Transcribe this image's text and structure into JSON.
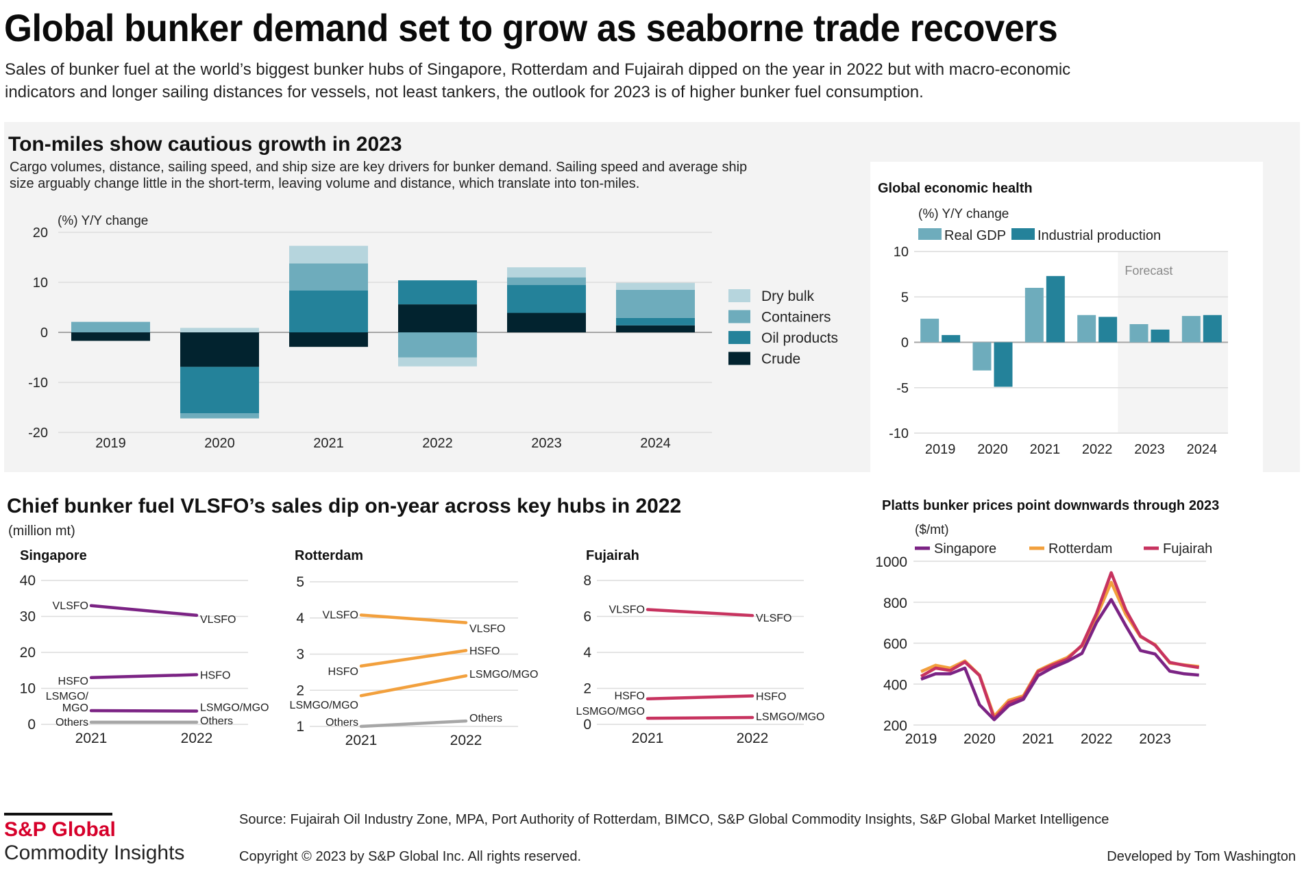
{
  "header": {
    "title": "Global bunker demand set to grow as seaborne trade recovers",
    "subtitle_line1": "Sales of bunker fuel at the world’s biggest bunker hubs of Singapore, Rotterdam and Fujairah dipped on the year in 2022 but with macro-economic",
    "subtitle_line2": "indicators and longer sailing distances for vessels, not least tankers, the outlook for 2023 is of higher bunker fuel consumption."
  },
  "colors": {
    "dry_bulk": "#b6d5dd",
    "containers": "#6eacbc",
    "oil_products": "#24829a",
    "crude": "#02232f",
    "real_gdp": "#6eacbc",
    "industrial_production": "#24829a",
    "singapore": "#7b2384",
    "rotterdam": "#f2a03d",
    "fujairah": "#c7335f",
    "others": "#a6a6a6",
    "brand_red": "#d6002a"
  },
  "ton_miles": {
    "title": "Ton-miles show cautious growth in 2023",
    "desc_line1": "Cargo volumes, distance, sailing speed, and ship size are key drivers for bunker demand. Sailing speed and average ship",
    "desc_line2": "size arguably change little in the short-term, leaving volume and distance, which translate into ton-miles."
  },
  "gdp": {
    "title": "Global economic health",
    "forecast_label": "Forecast"
  },
  "sales": {
    "title": "Chief bunker fuel VLSFO’s sales dip on-year across key hubs in 2022",
    "unit": "(million mt)"
  },
  "footer": {
    "brand": "S&P Global",
    "brand_sub": "Commodity Insights",
    "source": "Source: Fujairah Oil Industry Zone, MPA, Port Authority of Rotterdam, BIMCO, S&P Global Commodity Insights, S&P Global Market Intelligence",
    "copyright": "Copyright © 2023 by S&P Global Inc. All rights reserved.",
    "credit": "Developed by Tom Washington"
  },
  "chart_data": [
    {
      "id": "ton_miles",
      "type": "bar",
      "stacked": true,
      "title": "Ton-miles show cautious growth in 2023",
      "ylabel": "(%) Y/Y change",
      "xlabel": "",
      "categories": [
        "2019",
        "2020",
        "2021",
        "2022",
        "2023",
        "2024"
      ],
      "ylim": [
        -20,
        20
      ],
      "yticks": [
        20,
        10,
        0,
        -10,
        -20
      ],
      "grid": true,
      "legend_position": "right",
      "series": [
        {
          "name": "Crude",
          "color_key": "crude",
          "values": [
            -1.7,
            -6.9,
            -2.9,
            5.6,
            3.9,
            1.4
          ]
        },
        {
          "name": "Oil products",
          "color_key": "oil_products",
          "values": [
            0,
            -9.3,
            8.4,
            4.8,
            5.6,
            1.5
          ]
        },
        {
          "name": "Containers",
          "color_key": "containers",
          "values": [
            2.1,
            -1.0,
            5.4,
            -5.0,
            1.5,
            5.6
          ]
        },
        {
          "name": "Dry bulk",
          "color_key": "dry_bulk",
          "values": [
            0,
            0.9,
            3.5,
            -1.8,
            2.0,
            1.4
          ]
        }
      ],
      "legend_order": [
        "Dry bulk",
        "Containers",
        "Oil products",
        "Crude"
      ]
    },
    {
      "id": "gdp",
      "type": "bar",
      "stacked": false,
      "title": "Global economic health",
      "ylabel": "(%) Y/Y change",
      "categories": [
        "2019",
        "2020",
        "2021",
        "2022",
        "2023",
        "2024"
      ],
      "ylim": [
        -10,
        10
      ],
      "yticks": [
        10,
        5,
        0,
        -5,
        -10
      ],
      "grid": true,
      "legend_position": "top-left",
      "forecast_from": "2023",
      "annotations": [
        "Forecast"
      ],
      "series": [
        {
          "name": "Real GDP",
          "color_key": "real_gdp",
          "values": [
            2.6,
            -3.1,
            6.0,
            3.0,
            2.0,
            2.9
          ]
        },
        {
          "name": "Industrial production",
          "color_key": "industrial_production",
          "values": [
            0.8,
            -4.9,
            7.3,
            2.8,
            1.4,
            3.0
          ]
        }
      ]
    },
    {
      "id": "singapore_sales",
      "type": "line",
      "title": "Singapore",
      "ylabel": "(million mt)",
      "x": [
        "2021",
        "2022"
      ],
      "ylim": [
        0,
        40
      ],
      "yticks": [
        40,
        30,
        20,
        10,
        0
      ],
      "color_key": "singapore",
      "series": [
        {
          "name": "VLSFO",
          "values": [
            33.0,
            30.3
          ],
          "label_left": "VLSFO",
          "label_right": "VLSFO"
        },
        {
          "name": "HSFO",
          "values": [
            13.0,
            13.8
          ],
          "label_left": "HSFO",
          "label_right": "HSFO"
        },
        {
          "name": "LSMGO/MGO",
          "values": [
            3.8,
            3.7
          ],
          "label_left": "LSMGO/\nMGO",
          "label_right": "LSMGO/MGO"
        },
        {
          "name": "Others",
          "values": [
            0.6,
            0.6
          ],
          "label_left": "Others",
          "label_right": "Others",
          "gray": true
        }
      ]
    },
    {
      "id": "rotterdam_sales",
      "type": "line",
      "title": "Rotterdam",
      "x": [
        "2021",
        "2022"
      ],
      "ylim": [
        1,
        5
      ],
      "yticks": [
        5,
        4,
        3,
        2,
        1
      ],
      "color_key": "rotterdam",
      "series": [
        {
          "name": "VLSFO",
          "values": [
            4.08,
            3.87
          ],
          "label_left": "VLSFO",
          "label_right": "VLSFO"
        },
        {
          "name": "HSFO",
          "values": [
            2.67,
            3.1
          ],
          "label_left": "HSFO",
          "label_right": "HSFO"
        },
        {
          "name": "LSMGO/MGO",
          "values": [
            1.85,
            2.4
          ],
          "label_left": "LSMGO/MGO",
          "label_right": "LSMGO/MGO"
        },
        {
          "name": "Others",
          "values": [
            1.0,
            1.15
          ],
          "label_left": "Others",
          "label_right": "Others",
          "gray": true
        }
      ]
    },
    {
      "id": "fujairah_sales",
      "type": "line",
      "title": "Fujairah",
      "x": [
        "2021",
        "2022"
      ],
      "ylim": [
        0,
        8
      ],
      "yticks": [
        8,
        6,
        4,
        2,
        0
      ],
      "color_key": "fujairah",
      "series": [
        {
          "name": "VLSFO",
          "values": [
            6.38,
            6.05
          ],
          "label_left": "VLSFO",
          "label_right": "VLSFO"
        },
        {
          "name": "HSFO",
          "values": [
            1.42,
            1.58
          ],
          "label_left": "HSFO",
          "label_right": "HSFO"
        },
        {
          "name": "LSMGO/MGO",
          "values": [
            0.34,
            0.38
          ],
          "label_left": "LSMGO/MGO",
          "label_right": "LSMGO/MGO"
        }
      ]
    },
    {
      "id": "prices",
      "type": "line",
      "title": "Platts bunker prices point downwards through 2023",
      "ylabel": "($/mt)",
      "x_ticks": [
        "2019",
        "2020",
        "2021",
        "2022",
        "2023"
      ],
      "x_frequency": "quarterly 2019Q1-2023Q4",
      "ylim": [
        200,
        1000
      ],
      "yticks": [
        1000,
        800,
        600,
        400,
        200
      ],
      "grid": true,
      "legend_position": "top",
      "series": [
        {
          "name": "Singapore",
          "color_key": "singapore",
          "values": [
            424,
            450,
            450,
            478,
            299,
            226,
            295,
            326,
            441,
            480,
            511,
            550,
            701,
            813,
            685,
            564,
            547,
            463,
            450,
            444
          ]
        },
        {
          "name": "Rotterdam",
          "color_key": "rotterdam",
          "values": [
            461,
            492,
            478,
            513,
            444,
            243,
            321,
            343,
            466,
            500,
            530,
            586,
            729,
            897,
            740,
            631,
            593,
            503,
            494,
            486
          ]
        },
        {
          "name": "Fujairah",
          "color_key": "fujairah",
          "values": [
            438,
            478,
            466,
            508,
            442,
            231,
            310,
            335,
            461,
            494,
            522,
            590,
            746,
            944,
            762,
            634,
            590,
            506,
            492,
            481
          ]
        }
      ]
    }
  ]
}
